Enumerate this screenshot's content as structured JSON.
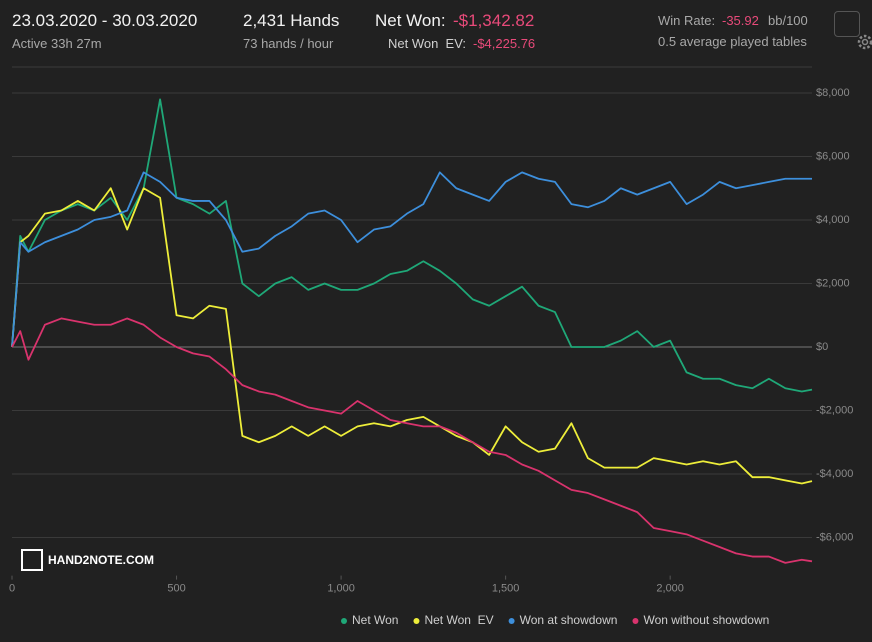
{
  "header": {
    "dates": "23.03.2020 - 30.03.2020",
    "active": "Active 33h 27m",
    "hands": "2,431 Hands",
    "hands_per_hour": "73 hands / hour",
    "net_won_label": "Net Won:",
    "net_won_value": "-$1,342.82",
    "net_won_ev_label": "Net Won  EV:",
    "net_won_ev_value": "-$4,225.76",
    "win_rate_label": "Win Rate:",
    "win_rate_value": "-35.92",
    "win_rate_unit": "bb/100",
    "tables": "0.5 average played tables"
  },
  "logo": "HAND2NOTE.COM",
  "chart_data": {
    "type": "line",
    "x": [
      0,
      25,
      50,
      100,
      150,
      200,
      250,
      300,
      350,
      400,
      450,
      500,
      550,
      600,
      650,
      700,
      750,
      800,
      850,
      900,
      950,
      1000,
      1050,
      1100,
      1150,
      1200,
      1250,
      1300,
      1350,
      1400,
      1450,
      1500,
      1550,
      1600,
      1650,
      1700,
      1750,
      1800,
      1850,
      1900,
      1950,
      2000,
      2050,
      2100,
      2150,
      2200,
      2250,
      2300,
      2350,
      2400,
      2431
    ],
    "xlim": [
      0,
      2431
    ],
    "xticks": [
      0,
      500,
      {
        "value": 1000,
        "label": "1,000"
      },
      {
        "value": 1500,
        "label": "1,500"
      },
      {
        "value": 2000,
        "label": "2,000"
      }
    ],
    "ylim": [
      -7200,
      8800
    ],
    "yticks": [
      {
        "value": -6000,
        "label": "-$6,000"
      },
      {
        "value": -4000,
        "label": "-$4,000"
      },
      {
        "value": -2000,
        "label": "-$2,000"
      },
      {
        "value": 0,
        "label": "$0"
      },
      {
        "value": 2000,
        "label": "$2,000"
      },
      {
        "value": 4000,
        "label": "$4,000"
      },
      {
        "value": 6000,
        "label": "$6,000"
      },
      {
        "value": 8000,
        "label": "$8,000"
      }
    ],
    "grid": true,
    "series": [
      {
        "name": "Net Won",
        "color": "#1fa878",
        "values": [
          0,
          3500,
          3000,
          4000,
          4300,
          4500,
          4300,
          4700,
          4000,
          5000,
          7800,
          4700,
          4500,
          4200,
          4600,
          2000,
          1600,
          2000,
          2200,
          1800,
          2000,
          1800,
          1800,
          2000,
          2300,
          2400,
          2700,
          2400,
          2000,
          1500,
          1300,
          1600,
          1900,
          1300,
          1100,
          0,
          0,
          0,
          200,
          500,
          0,
          200,
          -800,
          -1000,
          -1000,
          -1200,
          -1300,
          -1000,
          -1300,
          -1400,
          -1343
        ]
      },
      {
        "name": "Net Won  EV",
        "color": "#eeee3a",
        "values": [
          0,
          3300,
          3500,
          4200,
          4300,
          4600,
          4300,
          5000,
          3700,
          5000,
          4700,
          1000,
          900,
          1300,
          1200,
          -2800,
          -3000,
          -2800,
          -2500,
          -2800,
          -2500,
          -2800,
          -2500,
          -2400,
          -2500,
          -2300,
          -2200,
          -2500,
          -2800,
          -3000,
          -3400,
          -2500,
          -3000,
          -3300,
          -3200,
          -2400,
          -3500,
          -3800,
          -3800,
          -3800,
          -3500,
          -3600,
          -3700,
          -3600,
          -3700,
          -3600,
          -4100,
          -4100,
          -4200,
          -4300,
          -4226
        ]
      },
      {
        "name": "Won at showdown",
        "color": "#3d8fdc",
        "values": [
          0,
          3300,
          3000,
          3300,
          3500,
          3700,
          4000,
          4100,
          4300,
          5500,
          5200,
          4700,
          4600,
          4600,
          4000,
          3000,
          3100,
          3500,
          3800,
          4200,
          4300,
          4000,
          3300,
          3700,
          3800,
          4200,
          4500,
          5500,
          5000,
          4800,
          4600,
          5200,
          5500,
          5300,
          5200,
          4500,
          4400,
          4600,
          5000,
          4800,
          5000,
          5200,
          4500,
          4800,
          5200,
          5000,
          5100,
          5200,
          5300,
          5300,
          5300
        ]
      },
      {
        "name": "Won without showdown",
        "color": "#d9336d",
        "values": [
          0,
          500,
          -400,
          700,
          900,
          800,
          700,
          700,
          900,
          700,
          300,
          0,
          -200,
          -300,
          -700,
          -1200,
          -1400,
          -1500,
          -1700,
          -1900,
          -2000,
          -2100,
          -1700,
          -2000,
          -2300,
          -2400,
          -2500,
          -2500,
          -2700,
          -3000,
          -3300,
          -3400,
          -3700,
          -3900,
          -4200,
          -4500,
          -4600,
          -4800,
          -5000,
          -5200,
          -5700,
          -5800,
          -5900,
          -6100,
          -6300,
          -6500,
          -6600,
          -6600,
          -6800,
          -6700,
          -6750
        ]
      }
    ]
  }
}
